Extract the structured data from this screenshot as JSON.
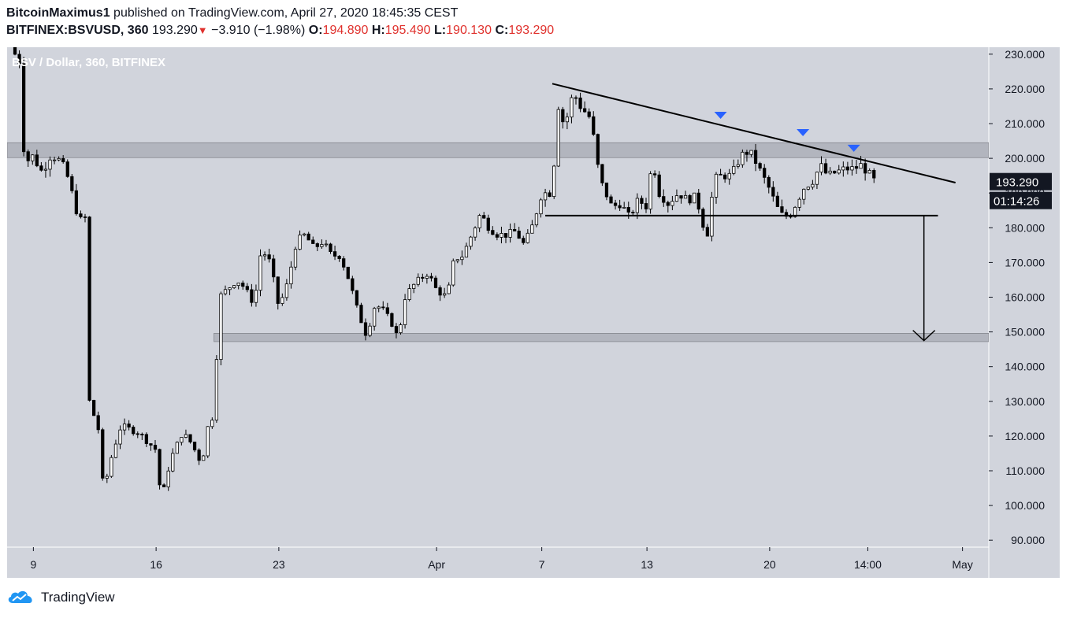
{
  "header": {
    "author": "BitcoinMaximus1",
    "published_text": "published on TradingView.com, April 27, 2020 18:45:35 CEST",
    "symbol": "BITFINEX:BSVUSD, 360",
    "last": "193.290",
    "change_arrow": "▼",
    "change": "−3.910 (−1.98%)",
    "o_label": "O:",
    "o_value": "194.890",
    "h_label": "H:",
    "h_value": "195.490",
    "l_label": "L:",
    "l_value": "190.130",
    "c_label": "C:",
    "c_value": "193.290"
  },
  "footer": {
    "brand": "TradingView",
    "logo_icon": "tradingview-cloud-logo-icon"
  },
  "chart_data": {
    "type": "candlestick",
    "title": "BSV / Dollar, 360, BITFINEX",
    "ylim": [
      88,
      232
    ],
    "y_ticks": [
      "230.000",
      "220.000",
      "210.000",
      "200.000",
      "190.000",
      "180.000",
      "170.000",
      "160.000",
      "150.000",
      "140.000",
      "130.000",
      "120.000",
      "110.000",
      "100.000",
      "90.000"
    ],
    "x_ticks": [
      {
        "label": "9",
        "day": 0
      },
      {
        "label": "16",
        "day": 7
      },
      {
        "label": "23",
        "day": 14
      },
      {
        "label": "Apr",
        "day": 23
      },
      {
        "label": "7",
        "day": 29
      },
      {
        "label": "13",
        "day": 35
      },
      {
        "label": "20",
        "day": 42
      },
      {
        "label": "14:00",
        "day": 47.6
      },
      {
        "label": "May",
        "day": 53
      }
    ],
    "price_label": "193.290",
    "countdown_label": "01:14:26",
    "colors": {
      "background": "#d1d4dc",
      "candle_up": "#ffffff",
      "candle_down": "#000000",
      "zone": "#b2b5be",
      "marker": "#2962ff",
      "price_tag": "#131722"
    },
    "zones": [
      {
        "from_day": -1.5,
        "to_day": 54.5,
        "low": 200.2,
        "high": 204.5
      },
      {
        "from_day": 10.3,
        "to_day": 54.5,
        "low": 147.2,
        "high": 149.6
      }
    ],
    "trendlines": [
      {
        "x1_day": 29.6,
        "y1": 221.5,
        "x2_day": 52.6,
        "y2": 193.0
      },
      {
        "x1_day": 29.2,
        "y1": 183.5,
        "x2_day": 51.6,
        "y2": 183.5
      }
    ],
    "arrow": {
      "day": 50.8,
      "from": 183.5,
      "to": 147.5
    },
    "resistance_markers": [
      {
        "day": 39.2,
        "value": 212.5
      },
      {
        "day": 43.9,
        "value": 207.5
      },
      {
        "day": 46.8,
        "value": 203.0
      }
    ],
    "anchors": [
      [
        -1.3,
        232
      ],
      [
        -0.8,
        228
      ],
      [
        -0.5,
        198
      ],
      [
        -0.1,
        201
      ],
      [
        0.5,
        196
      ],
      [
        1.0,
        201
      ],
      [
        1.6,
        199
      ],
      [
        2.0,
        194
      ],
      [
        2.6,
        182
      ],
      [
        3.0,
        183
      ],
      [
        3.2,
        130
      ],
      [
        3.7,
        122
      ],
      [
        4.0,
        104
      ],
      [
        4.5,
        115
      ],
      [
        5.0,
        123
      ],
      [
        6.0,
        121
      ],
      [
        7.0,
        116
      ],
      [
        7.3,
        101
      ],
      [
        7.8,
        113
      ],
      [
        8.5,
        121
      ],
      [
        9.0,
        118
      ],
      [
        9.6,
        112
      ],
      [
        10.0,
        124
      ],
      [
        10.3,
        126
      ],
      [
        10.6,
        160
      ],
      [
        11.0,
        162
      ],
      [
        11.6,
        165
      ],
      [
        12.0,
        163
      ],
      [
        12.6,
        158
      ],
      [
        13.0,
        174
      ],
      [
        13.5,
        170
      ],
      [
        14.0,
        157
      ],
      [
        14.5,
        164
      ],
      [
        15.0,
        176
      ],
      [
        15.5,
        178
      ],
      [
        16.0,
        174
      ],
      [
        16.5,
        176
      ],
      [
        17.0,
        172
      ],
      [
        17.5,
        172
      ],
      [
        18.0,
        165
      ],
      [
        18.5,
        156
      ],
      [
        19.0,
        149
      ],
      [
        19.5,
        158
      ],
      [
        20.0,
        156
      ],
      [
        20.5,
        152
      ],
      [
        20.8,
        148
      ],
      [
        21.2,
        160
      ],
      [
        21.6,
        163
      ],
      [
        22.0,
        165
      ],
      [
        22.5,
        167
      ],
      [
        23.0,
        162
      ],
      [
        23.6,
        160
      ],
      [
        24.0,
        171
      ],
      [
        24.5,
        172
      ],
      [
        25.0,
        178
      ],
      [
        25.5,
        184
      ],
      [
        26.0,
        180
      ],
      [
        26.5,
        178
      ],
      [
        27.0,
        178
      ],
      [
        27.5,
        179
      ],
      [
        28.0,
        175
      ],
      [
        28.5,
        181
      ],
      [
        29.0,
        190
      ],
      [
        29.6,
        190
      ],
      [
        29.9,
        216
      ],
      [
        30.3,
        209
      ],
      [
        30.8,
        219
      ],
      [
        31.2,
        215
      ],
      [
        31.7,
        212
      ],
      [
        32.0,
        205
      ],
      [
        32.3,
        194
      ],
      [
        33.0,
        186
      ],
      [
        33.5,
        187
      ],
      [
        34.0,
        183
      ],
      [
        34.5,
        188
      ],
      [
        35.0,
        186
      ],
      [
        35.3,
        200
      ],
      [
        35.7,
        190
      ],
      [
        36.2,
        187
      ],
      [
        36.8,
        190
      ],
      [
        37.3,
        188
      ],
      [
        37.8,
        189
      ],
      [
        38.2,
        181
      ],
      [
        38.5,
        178
      ],
      [
        38.8,
        194
      ],
      [
        39.3,
        195
      ],
      [
        39.8,
        195
      ],
      [
        40.3,
        200
      ],
      [
        40.6,
        202
      ],
      [
        41.0,
        201
      ],
      [
        41.5,
        196
      ],
      [
        42.0,
        191
      ],
      [
        42.4,
        186
      ],
      [
        42.8,
        183
      ],
      [
        43.2,
        184
      ],
      [
        43.6,
        188
      ],
      [
        44.0,
        192
      ],
      [
        44.4,
        193
      ],
      [
        44.9,
        198
      ],
      [
        45.3,
        195
      ],
      [
        45.8,
        196
      ],
      [
        46.3,
        197
      ],
      [
        46.8,
        197
      ],
      [
        47.2,
        198
      ],
      [
        47.6,
        196
      ],
      [
        48.0,
        193.29
      ]
    ]
  }
}
